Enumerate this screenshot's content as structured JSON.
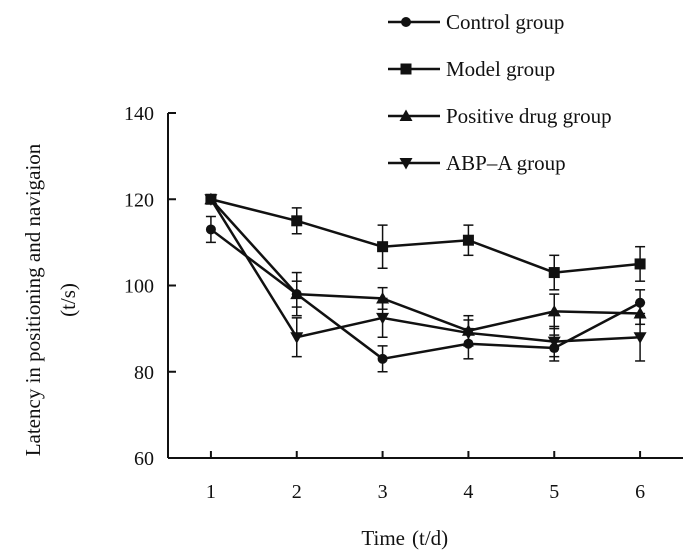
{
  "chart_data": {
    "type": "line",
    "title": "",
    "xlabel": "Time",
    "xlabel_unit": "(t/d)",
    "ylabel": "Latency in positioning and navigaion",
    "ylabel_unit": "(t/s)",
    "categories": [
      "1",
      "2",
      "3",
      "4",
      "5",
      "6"
    ],
    "x": [
      1,
      2,
      3,
      4,
      5,
      6
    ],
    "xlim": [
      0.5,
      6.5
    ],
    "ylim": [
      60,
      140
    ],
    "yticks": [
      60,
      80,
      100,
      120,
      140
    ],
    "ytick_labels": [
      "60",
      "80",
      "100",
      "120",
      "140"
    ],
    "grid": false,
    "legend_position": "top-right",
    "series": [
      {
        "name": "Control group",
        "marker": "circle",
        "values": [
          113,
          98,
          83,
          86.5,
          85.5,
          96
        ],
        "errors": [
          3,
          3,
          3,
          3.5,
          3,
          3
        ]
      },
      {
        "name": "Model group",
        "marker": "square",
        "values": [
          120,
          115,
          109,
          110.5,
          103,
          105
        ],
        "errors": [
          0,
          3,
          5,
          3.5,
          4,
          4
        ]
      },
      {
        "name": "Positive drug group",
        "marker": "triangle-up",
        "values": [
          120,
          98,
          97,
          89.5,
          94,
          93.5
        ],
        "errors": [
          0,
          5,
          2.5,
          3.5,
          4,
          2.5
        ]
      },
      {
        "name": "ABP–A group",
        "marker": "triangle-down",
        "values": [
          120,
          88,
          92.5,
          89,
          87,
          88
        ],
        "errors": [
          0,
          4.5,
          4.5,
          3,
          3.5,
          5.5
        ]
      }
    ]
  }
}
